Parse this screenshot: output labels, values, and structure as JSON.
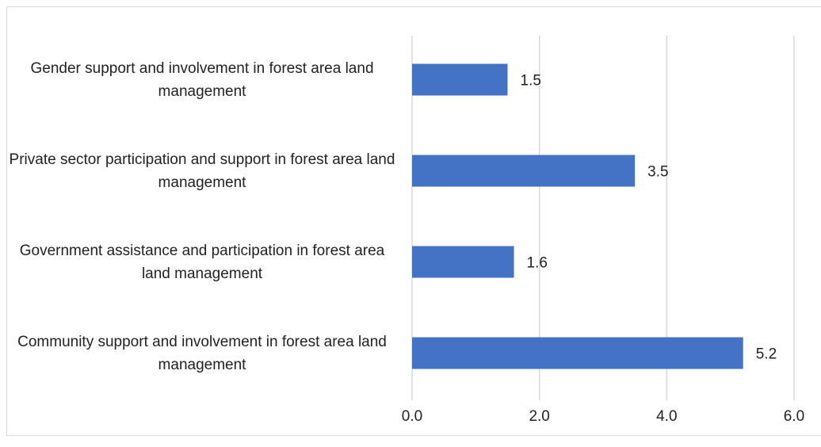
{
  "chart_data": {
    "type": "bar",
    "orientation": "horizontal",
    "categories": [
      "Gender support and involvement in forest area land management",
      "Private sector participation and support in forest area land management",
      "Government assistance and participation in forest area land management",
      "Community support and involvement in forest area land management"
    ],
    "values": [
      1.5,
      3.5,
      1.6,
      5.2
    ],
    "color": "#4472c4",
    "xlim": [
      0,
      6
    ],
    "xticks": [
      {
        "value": 0,
        "label": "0.0"
      },
      {
        "value": 2,
        "label": "2.0"
      },
      {
        "value": 4,
        "label": "4.0"
      },
      {
        "value": 6,
        "label": "6.0"
      }
    ],
    "grid": true
  }
}
